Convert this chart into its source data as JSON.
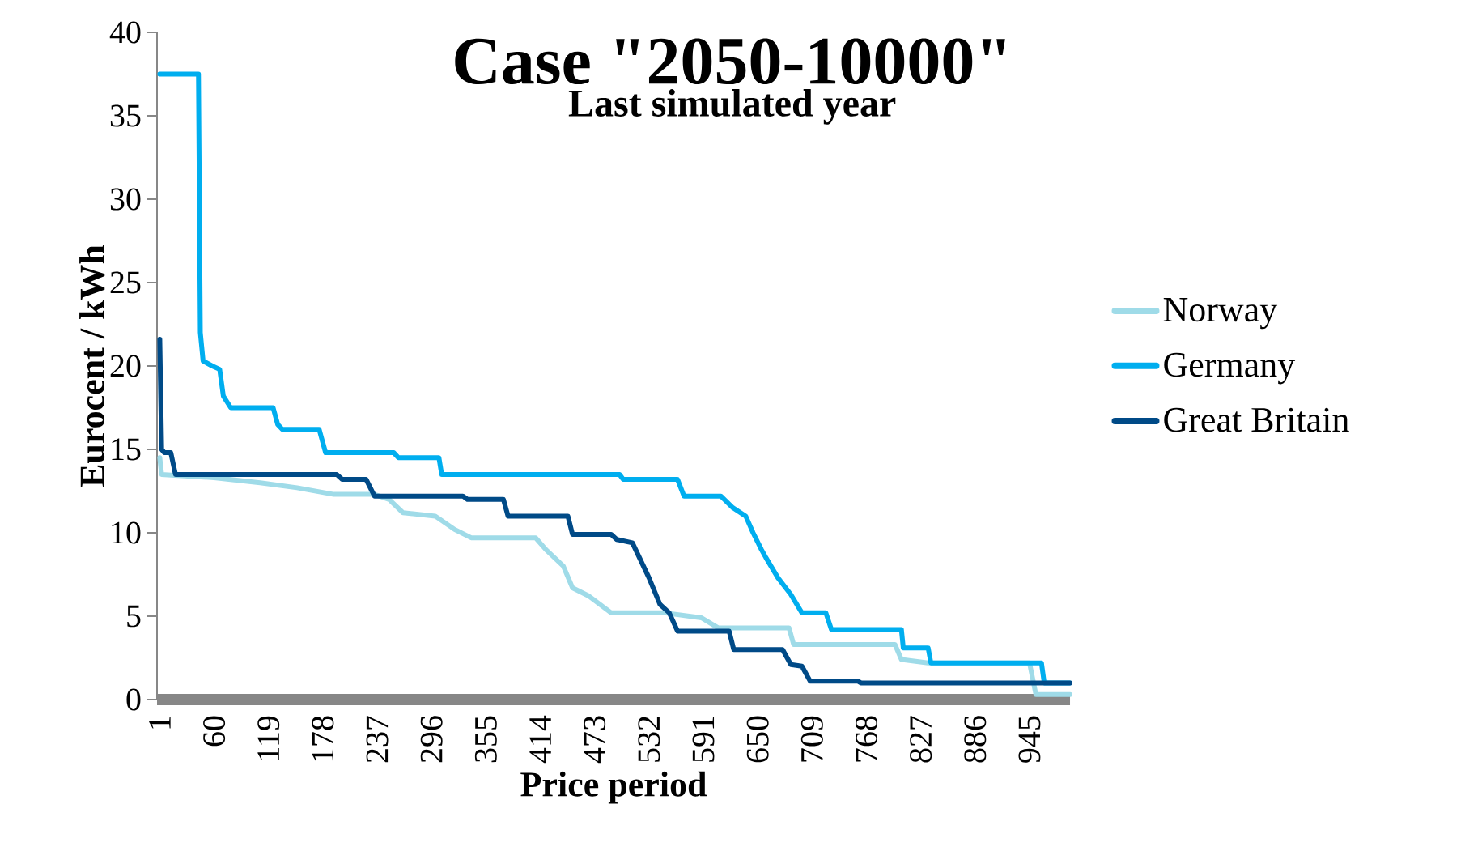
{
  "chart_data": {
    "type": "line",
    "title": "Case \"2050-10000\"",
    "subtitle": "Last simulated year",
    "xlabel": "Price period",
    "ylabel": "Eurocent / kWh",
    "xlim": [
      -2,
      989
    ],
    "xticks": [
      1,
      60,
      119,
      178,
      237,
      296,
      355,
      414,
      473,
      532,
      591,
      650,
      709,
      768,
      827,
      886,
      945
    ],
    "ylim": [
      0,
      40
    ],
    "yticks": [
      0,
      5,
      10,
      15,
      20,
      25,
      30,
      35,
      40
    ],
    "grid": false,
    "legend": "right",
    "marker": "none",
    "line_style": "solid",
    "series": [
      {
        "name": "Norway",
        "color": "#9fdbe8",
        "x": [
          1,
          3,
          60,
          110,
          150,
          190,
          234,
          250,
          265,
          300,
          321,
          339,
          409,
          420,
          439,
          449,
          467,
          491,
          549,
          589,
          607,
          684,
          689,
          799,
          806,
          835,
          945,
          952,
          989
        ],
        "values": [
          14.5,
          13.5,
          13.3,
          13.0,
          12.7,
          12.3,
          12.3,
          12.0,
          11.2,
          11.0,
          10.2,
          9.7,
          9.7,
          9.0,
          8.0,
          6.7,
          6.2,
          5.2,
          5.2,
          4.9,
          4.3,
          4.3,
          3.3,
          3.3,
          2.4,
          2.2,
          2.2,
          0.3,
          0.3
        ]
      },
      {
        "name": "Germany",
        "color": "#00aeef",
        "x": [
          1,
          43,
          45,
          48,
          58,
          66,
          70,
          78,
          124,
          129,
          134,
          174,
          181,
          255,
          260,
          304,
          307,
          500,
          504,
          563,
          570,
          610,
          623,
          637,
          645,
          654,
          659,
          672,
          686,
          698,
          724,
          730,
          806,
          808,
          835,
          838,
          958,
          961,
          989
        ],
        "values": [
          37.5,
          37.5,
          22,
          20.3,
          20,
          19.8,
          18.2,
          17.5,
          17.5,
          16.5,
          16.2,
          16.2,
          14.8,
          14.8,
          14.5,
          14.5,
          13.5,
          13.5,
          13.2,
          13.2,
          12.2,
          12.2,
          11.5,
          11,
          10,
          9,
          8.5,
          7.3,
          6.3,
          5.2,
          5.2,
          4.2,
          4.2,
          3.1,
          3.1,
          2.2,
          2.2,
          1.0,
          1.0
        ]
      },
      {
        "name": "Great Britain",
        "color": "#004a87",
        "x": [
          1,
          3,
          6,
          13,
          18,
          193,
          199,
          225,
          234,
          330,
          335,
          374,
          379,
          444,
          449,
          491,
          497,
          514,
          532,
          544,
          554,
          563,
          619,
          624,
          677,
          686,
          698,
          707,
          759,
          762,
          989
        ],
        "values": [
          21.6,
          15,
          14.8,
          14.8,
          13.5,
          13.5,
          13.2,
          13.2,
          12.2,
          12.2,
          12.0,
          12.0,
          11.0,
          11.0,
          9.9,
          9.9,
          9.6,
          9.4,
          7.3,
          5.7,
          5.2,
          4.1,
          4.1,
          3.0,
          3.0,
          2.1,
          2.0,
          1.1,
          1.1,
          1.0,
          1.0
        ]
      }
    ]
  }
}
